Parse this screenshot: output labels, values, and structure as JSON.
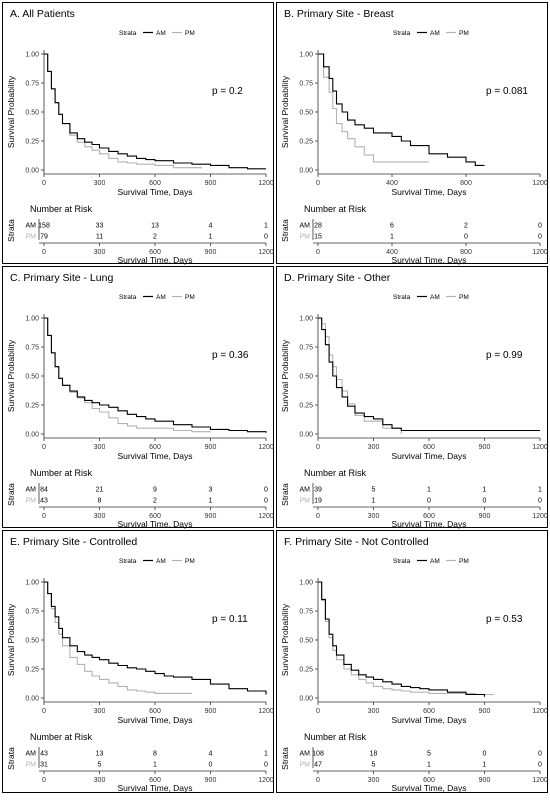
{
  "figure": {
    "number_at_risk_label": "Number at Risk",
    "strata_label": "Strata",
    "xlabel": "Survival Time, Days",
    "ylabel": "Survival Probability",
    "yticks": [
      "0.00",
      "0.25",
      "0.50",
      "0.75",
      "1.00"
    ],
    "colors": {
      "AM": "#000000",
      "PM": "#b3b3b3",
      "border": "#000000",
      "axis": "#333333"
    }
  },
  "chart_data": [
    {
      "type": "line",
      "title": "A. All Patients",
      "pvalue": "p = 0.2",
      "xlim": [
        0,
        1200
      ],
      "xticks": [
        0,
        300,
        600,
        900,
        1200
      ],
      "ylim": [
        0,
        1
      ],
      "series": [
        {
          "name": "AM",
          "x": [
            0,
            20,
            40,
            60,
            80,
            100,
            140,
            180,
            220,
            260,
            300,
            350,
            400,
            450,
            500,
            550,
            600,
            700,
            800,
            900,
            1000,
            1100,
            1200
          ],
          "y": [
            1.0,
            0.85,
            0.7,
            0.58,
            0.48,
            0.4,
            0.32,
            0.27,
            0.24,
            0.22,
            0.19,
            0.16,
            0.14,
            0.12,
            0.1,
            0.09,
            0.08,
            0.06,
            0.05,
            0.04,
            0.02,
            0.01,
            0.01
          ]
        },
        {
          "name": "PM",
          "x": [
            0,
            20,
            40,
            60,
            80,
            100,
            140,
            180,
            220,
            260,
            300,
            350,
            400,
            450,
            500,
            600,
            700,
            800,
            850
          ],
          "y": [
            1.0,
            0.85,
            0.7,
            0.58,
            0.48,
            0.4,
            0.3,
            0.24,
            0.2,
            0.17,
            0.14,
            0.1,
            0.07,
            0.06,
            0.05,
            0.04,
            0.02,
            0.02,
            0.01
          ]
        }
      ],
      "risk": {
        "ticks": [
          0,
          300,
          600,
          900,
          1200
        ],
        "AM": [
          158,
          33,
          13,
          4,
          1
        ],
        "PM": [
          79,
          11,
          2,
          1,
          0
        ]
      }
    },
    {
      "type": "line",
      "title": "B. Primary Site - Breast",
      "pvalue": "p = 0.081",
      "xlim": [
        0,
        1200
      ],
      "xticks": [
        0,
        400,
        800,
        1200
      ],
      "ylim": [
        0,
        1
      ],
      "series": [
        {
          "name": "AM",
          "x": [
            0,
            30,
            60,
            80,
            100,
            130,
            160,
            200,
            250,
            300,
            350,
            400,
            450,
            500,
            550,
            600,
            700,
            800,
            850,
            900
          ],
          "y": [
            1.0,
            0.89,
            0.79,
            0.68,
            0.57,
            0.5,
            0.43,
            0.39,
            0.36,
            0.32,
            0.32,
            0.29,
            0.25,
            0.21,
            0.21,
            0.14,
            0.11,
            0.07,
            0.04,
            0.04
          ]
        },
        {
          "name": "PM",
          "x": [
            0,
            30,
            60,
            80,
            100,
            130,
            160,
            200,
            250,
            300,
            350,
            400,
            500,
            600
          ],
          "y": [
            1.0,
            0.8,
            0.67,
            0.53,
            0.4,
            0.33,
            0.27,
            0.2,
            0.13,
            0.07,
            0.07,
            0.07,
            0.07,
            0.07
          ]
        }
      ],
      "risk": {
        "ticks": [
          0,
          400,
          800,
          1200
        ],
        "AM": [
          28,
          6,
          2,
          0
        ],
        "PM": [
          15,
          1,
          0,
          0
        ]
      }
    },
    {
      "type": "line",
      "title": "C. Primary Site - Lung",
      "pvalue": "p = 0.36",
      "xlim": [
        0,
        1200
      ],
      "xticks": [
        0,
        300,
        600,
        900,
        1200
      ],
      "ylim": [
        0,
        1
      ],
      "series": [
        {
          "name": "AM",
          "x": [
            0,
            20,
            40,
            60,
            80,
            100,
            140,
            180,
            220,
            260,
            300,
            350,
            400,
            450,
            500,
            550,
            600,
            700,
            800,
            900,
            1000,
            1100,
            1200
          ],
          "y": [
            1.0,
            0.85,
            0.7,
            0.58,
            0.48,
            0.42,
            0.37,
            0.32,
            0.29,
            0.27,
            0.25,
            0.23,
            0.2,
            0.17,
            0.15,
            0.13,
            0.11,
            0.08,
            0.06,
            0.04,
            0.03,
            0.02,
            0.01
          ]
        },
        {
          "name": "PM",
          "x": [
            0,
            20,
            40,
            60,
            80,
            100,
            140,
            180,
            220,
            260,
            300,
            350,
            400,
            450,
            500,
            600,
            700,
            800,
            850,
            900
          ],
          "y": [
            1.0,
            0.85,
            0.7,
            0.58,
            0.48,
            0.42,
            0.36,
            0.31,
            0.27,
            0.22,
            0.19,
            0.14,
            0.09,
            0.07,
            0.05,
            0.05,
            0.03,
            0.02,
            0.02,
            0.02
          ]
        }
      ],
      "risk": {
        "ticks": [
          0,
          300,
          600,
          900,
          1200
        ],
        "AM": [
          84,
          21,
          9,
          3,
          0
        ],
        "PM": [
          43,
          8,
          2,
          1,
          0
        ]
      }
    },
    {
      "type": "line",
      "title": "D. Primary Site - Other",
      "pvalue": "p = 0.99",
      "xlim": [
        0,
        1200
      ],
      "xticks": [
        0,
        300,
        600,
        900,
        1200
      ],
      "ylim": [
        0,
        1
      ],
      "series": [
        {
          "name": "AM",
          "x": [
            0,
            20,
            40,
            60,
            80,
            100,
            130,
            160,
            200,
            250,
            300,
            350,
            400,
            450,
            500,
            600,
            800,
            1000,
            1200
          ],
          "y": [
            1.0,
            0.9,
            0.77,
            0.62,
            0.5,
            0.4,
            0.32,
            0.24,
            0.18,
            0.15,
            0.13,
            0.08,
            0.05,
            0.03,
            0.03,
            0.03,
            0.03,
            0.03,
            0.03
          ]
        },
        {
          "name": "PM",
          "x": [
            0,
            20,
            40,
            60,
            80,
            100,
            130,
            160,
            200,
            250,
            300,
            350,
            400,
            450
          ],
          "y": [
            1.0,
            0.95,
            0.84,
            0.68,
            0.58,
            0.47,
            0.37,
            0.26,
            0.16,
            0.11,
            0.11,
            0.05,
            0.05,
            0.0
          ]
        }
      ],
      "risk": {
        "ticks": [
          0,
          300,
          600,
          900,
          1200
        ],
        "AM": [
          39,
          5,
          1,
          1,
          1
        ],
        "PM": [
          19,
          1,
          0,
          0,
          0
        ]
      }
    },
    {
      "type": "line",
      "title": "E. Primary Site - Controlled",
      "pvalue": "p = 0.11",
      "xlim": [
        0,
        1200
      ],
      "xticks": [
        0,
        300,
        600,
        900,
        1200
      ],
      "ylim": [
        0,
        1
      ],
      "series": [
        {
          "name": "AM",
          "x": [
            0,
            20,
            40,
            60,
            80,
            100,
            140,
            180,
            220,
            260,
            300,
            350,
            400,
            450,
            500,
            550,
            600,
            650,
            700,
            800,
            900,
            1000,
            1100,
            1200
          ],
          "y": [
            1.0,
            0.9,
            0.79,
            0.7,
            0.6,
            0.52,
            0.45,
            0.4,
            0.37,
            0.35,
            0.33,
            0.3,
            0.28,
            0.26,
            0.25,
            0.23,
            0.21,
            0.19,
            0.18,
            0.16,
            0.12,
            0.08,
            0.06,
            0.03
          ]
        },
        {
          "name": "PM",
          "x": [
            0,
            20,
            40,
            60,
            80,
            100,
            140,
            180,
            220,
            260,
            300,
            350,
            400,
            450,
            500,
            550,
            600,
            700,
            800
          ],
          "y": [
            1.0,
            0.9,
            0.77,
            0.65,
            0.55,
            0.45,
            0.35,
            0.29,
            0.23,
            0.19,
            0.16,
            0.13,
            0.1,
            0.07,
            0.06,
            0.05,
            0.04,
            0.04,
            0.04
          ]
        }
      ],
      "risk": {
        "ticks": [
          0,
          300,
          600,
          900,
          1200
        ],
        "AM": [
          43,
          13,
          8,
          4,
          1
        ],
        "PM": [
          31,
          5,
          1,
          0,
          0
        ]
      }
    },
    {
      "type": "line",
      "title": "F. Primary Site - Not Controlled",
      "pvalue": "p = 0.53",
      "xlim": [
        0,
        1200
      ],
      "xticks": [
        0,
        300,
        600,
        900,
        1200
      ],
      "ylim": [
        0,
        1
      ],
      "series": [
        {
          "name": "AM",
          "x": [
            0,
            20,
            40,
            60,
            80,
            100,
            140,
            180,
            220,
            260,
            300,
            350,
            400,
            450,
            500,
            550,
            600,
            700,
            800,
            900
          ],
          "y": [
            1.0,
            0.85,
            0.68,
            0.55,
            0.45,
            0.37,
            0.29,
            0.24,
            0.2,
            0.18,
            0.16,
            0.14,
            0.12,
            0.1,
            0.09,
            0.08,
            0.07,
            0.05,
            0.03,
            0.01
          ]
        },
        {
          "name": "PM",
          "x": [
            0,
            20,
            40,
            60,
            80,
            100,
            140,
            180,
            220,
            260,
            300,
            350,
            400,
            450,
            500,
            600,
            700,
            800,
            850,
            950
          ],
          "y": [
            1.0,
            0.84,
            0.66,
            0.52,
            0.41,
            0.33,
            0.25,
            0.2,
            0.16,
            0.13,
            0.1,
            0.08,
            0.07,
            0.06,
            0.05,
            0.04,
            0.04,
            0.04,
            0.03,
            0.03
          ]
        }
      ],
      "risk": {
        "ticks": [
          0,
          300,
          600,
          900,
          1200
        ],
        "AM": [
          108,
          18,
          5,
          0,
          0
        ],
        "PM": [
          47,
          5,
          1,
          1,
          0
        ]
      }
    }
  ]
}
